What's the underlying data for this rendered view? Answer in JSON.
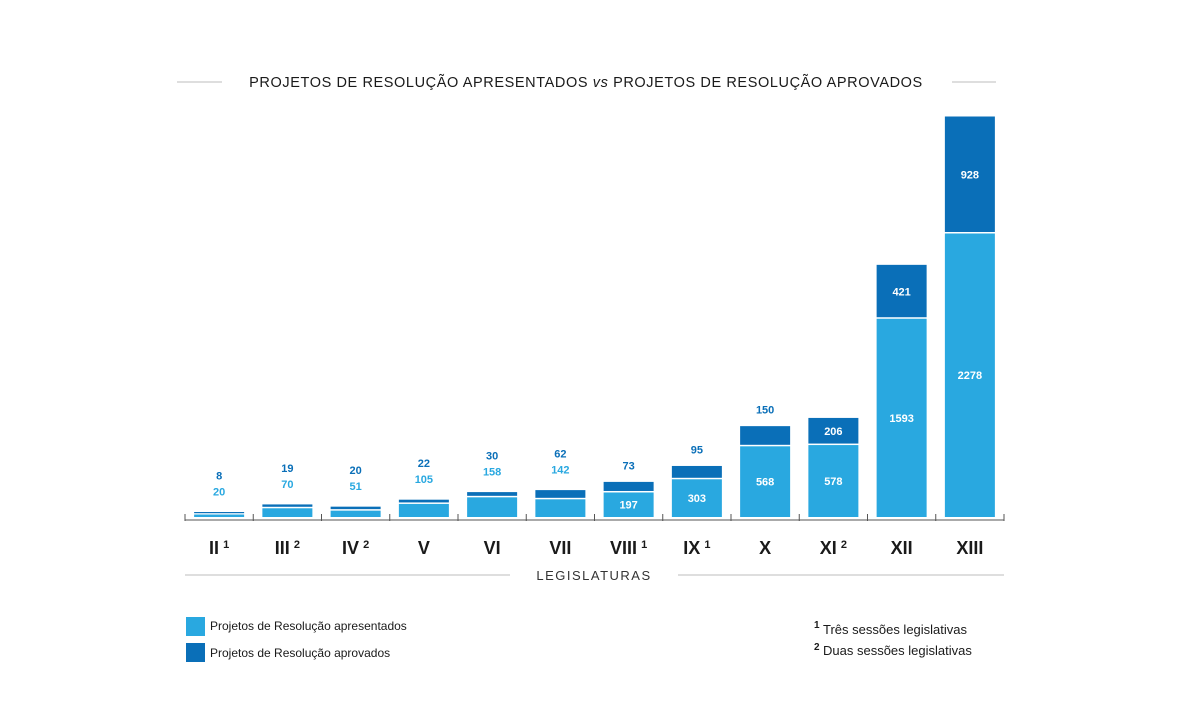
{
  "colors": {
    "presented": "#29a8e0",
    "approved": "#0a6fb8",
    "label_light": "#29a8e0",
    "label_dark": "#0a6fb8",
    "text": "#1a1a1a",
    "rule": "#bdbdbd"
  },
  "chart_data": {
    "type": "bar",
    "stacked": true,
    "title_parts": [
      "PROJETOS DE RESOLUÇÃO APRESENTADOS ",
      "vs",
      " PROJETOS DE RESOLUÇÃO APROVADOS"
    ],
    "xlabel": "LEGISLATURAS",
    "categories": [
      "II",
      "III",
      "IV",
      "V",
      "VI",
      "VII",
      "VIII",
      "IX",
      "X",
      "XI",
      "XII",
      "XIII"
    ],
    "category_superscripts": [
      "1",
      "2",
      "2",
      "",
      "",
      "",
      "1",
      "1",
      "",
      "2",
      "",
      ""
    ],
    "series": [
      {
        "name": "Projetos de Resolução apresentados",
        "values": [
          20,
          70,
          51,
          105,
          158,
          142,
          197,
          303,
          568,
          578,
          1593,
          2278
        ]
      },
      {
        "name": "Projetos de Resolução aprovados",
        "values": [
          8,
          19,
          20,
          22,
          30,
          62,
          73,
          95,
          150,
          206,
          421,
          928
        ]
      }
    ],
    "ylim": [
      0,
      3206
    ],
    "legend_position": "bottom-left",
    "footnotes": [
      {
        "marker": "1",
        "text": "Três sessões legislativas"
      },
      {
        "marker": "2",
        "text": "Duas sessões legislativas"
      }
    ]
  }
}
